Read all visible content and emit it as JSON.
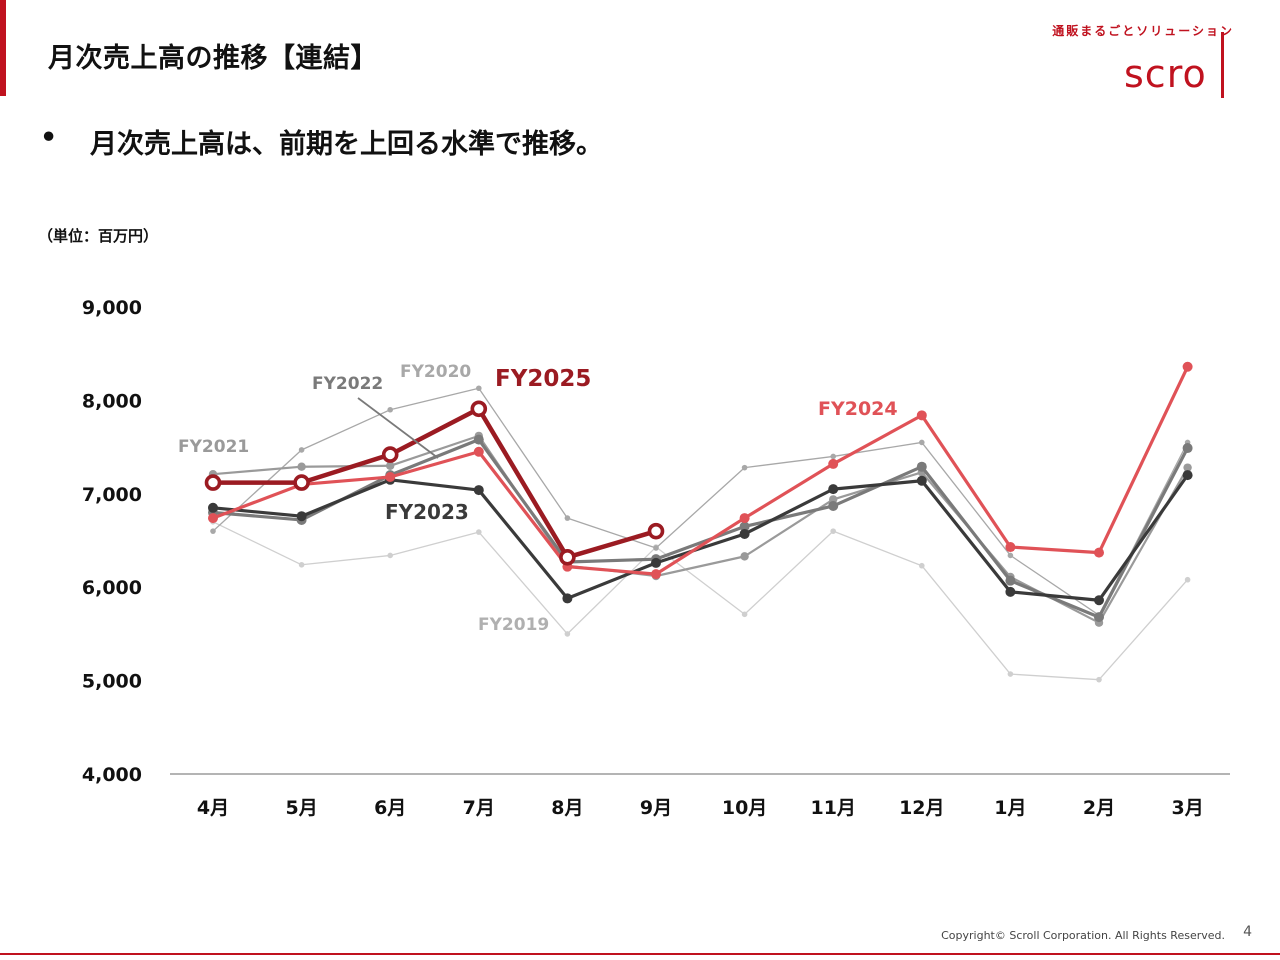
{
  "header": {
    "title": "月次売上高の推移【連結】",
    "logo_tagline": "通販まるごとソリューション",
    "logo_word": "scro"
  },
  "bullet": {
    "dot": "•",
    "text": "月次売上高は、前期を上回る水準で推移。"
  },
  "unit_label": "（単位：百万円）",
  "footer": {
    "copyright": "Copyright© Scroll Corporation. All Rights Reserved.",
    "page_number": "4"
  },
  "colors": {
    "accent": "#c0121f",
    "fy2025": "#9b1b22",
    "fy2024": "#e05257",
    "fy2023": "#3a3a3a",
    "fy2022": "#7a7a7a",
    "fy2021": "#9a9a9a",
    "fy2020": "#a8a8a8",
    "fy2019": "#cfcfcf"
  },
  "chart_data": {
    "type": "line",
    "title": "",
    "xlabel": "",
    "ylabel": "",
    "ylim": [
      4000,
      9000
    ],
    "y_ticks": [
      "4,000",
      "5,000",
      "6,000",
      "7,000",
      "8,000",
      "9,000"
    ],
    "y_tick_values": [
      4000,
      5000,
      6000,
      7000,
      8000,
      9000
    ],
    "categories": [
      "4月",
      "5月",
      "6月",
      "7月",
      "8月",
      "9月",
      "10月",
      "11月",
      "12月",
      "1月",
      "2月",
      "3月"
    ],
    "series": [
      {
        "name": "FY2019",
        "color_key": "fy2019",
        "style": "thin",
        "values": [
          6700,
          6240,
          6340,
          6590,
          5500,
          6430,
          5710,
          6600,
          6230,
          5070,
          5010,
          6080
        ]
      },
      {
        "name": "FY2020",
        "color_key": "fy2020",
        "style": "thin",
        "values": [
          6600,
          7470,
          7900,
          8130,
          6740,
          6420,
          7280,
          7400,
          7550,
          6340,
          5700,
          7550
        ]
      },
      {
        "name": "FY2021",
        "color_key": "fy2021",
        "style": "medium",
        "values": [
          7210,
          7290,
          7300,
          7620,
          6230,
          6120,
          6330,
          6940,
          7230,
          6110,
          5620,
          7280
        ]
      },
      {
        "name": "FY2022",
        "color_key": "fy2022",
        "style": "bold",
        "values": [
          6800,
          6720,
          7200,
          7580,
          6270,
          6300,
          6650,
          6870,
          7290,
          6070,
          5680,
          7490
        ]
      },
      {
        "name": "FY2023",
        "color_key": "fy2023",
        "style": "bold",
        "values": [
          6850,
          6760,
          7150,
          7040,
          5880,
          6260,
          6570,
          7050,
          7140,
          5950,
          5860,
          7200
        ]
      },
      {
        "name": "FY2024",
        "color_key": "fy2024",
        "style": "bold",
        "values": [
          6740,
          7100,
          7180,
          7450,
          6220,
          6140,
          6740,
          7320,
          7840,
          6430,
          6370,
          8360
        ]
      },
      {
        "name": "FY2025",
        "color_key": "fy2025",
        "style": "hollow",
        "values": [
          7120,
          7120,
          7420,
          7910,
          6320,
          6600,
          null,
          null,
          null,
          null,
          null,
          null
        ]
      }
    ],
    "series_labels": {
      "FY2019": "FY2019",
      "FY2020": "FY2020",
      "FY2021": "FY2021",
      "FY2022": "FY2022",
      "FY2023": "FY2023",
      "FY2024": "FY2024",
      "FY2025": "FY2025"
    },
    "grid": false,
    "legend": "inline labels"
  }
}
